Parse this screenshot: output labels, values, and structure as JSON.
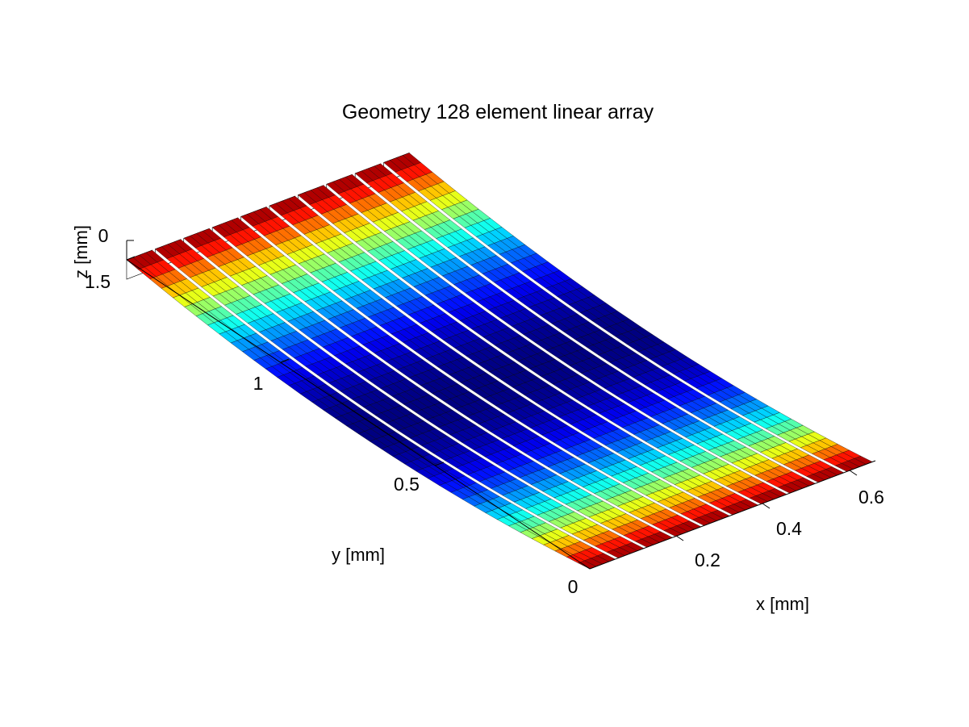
{
  "chart_data": {
    "type": "surface3d",
    "title": "Geometry 128 element linear array",
    "xlabel": "x [mm]",
    "ylabel": "y [mm]",
    "zlabel": "z [mm]",
    "xlim": [
      0,
      0.66
    ],
    "ylim": [
      0,
      1.5
    ],
    "zlim": [
      -0.06,
      0
    ],
    "x_ticks": [
      "0",
      "0.2",
      "0.4",
      "0.6"
    ],
    "y_ticks": [
      "0.5",
      "1",
      "1.5"
    ],
    "z_ticks": [
      "0"
    ],
    "colormap": "jet",
    "strips": {
      "count": 10,
      "x_start": 0,
      "pitch": 0.066,
      "width": 0.059,
      "surface": "z = -0.06 * (1 - ((y - 0.75) / 0.75)^2)"
    }
  }
}
